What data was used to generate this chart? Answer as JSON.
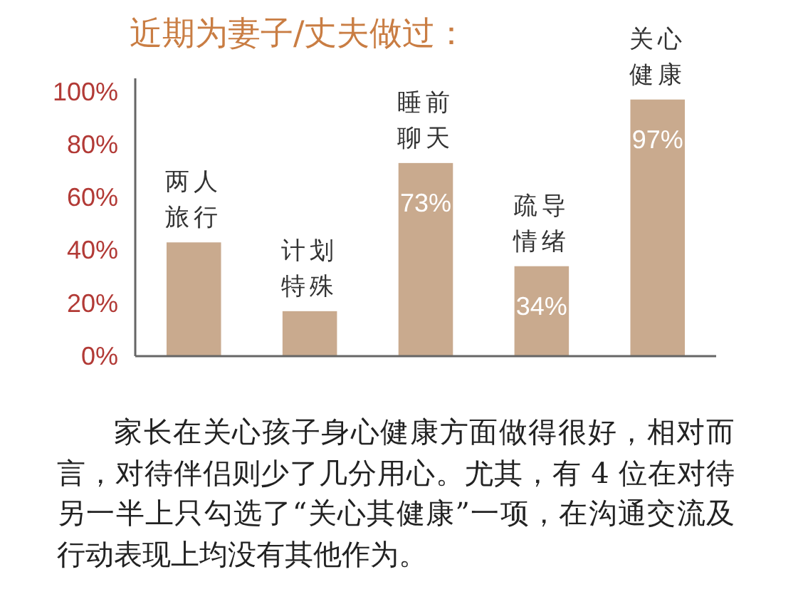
{
  "chart_data": {
    "type": "bar",
    "title": "近期为妻子/丈夫做过：",
    "categories": [
      "两人旅行",
      "计划特殊",
      "睡前聊天",
      "疏导情绪",
      "关心健康"
    ],
    "values": [
      43,
      17,
      73,
      34,
      97
    ],
    "color": "#c9aa8e",
    "value_labels": [
      null,
      null,
      "73%",
      "34%",
      "97%"
    ],
    "ylim": [
      0,
      105
    ],
    "yticks": [
      {
        "value": 0,
        "label": "0%"
      },
      {
        "value": 20,
        "label": "20%"
      },
      {
        "value": 40,
        "label": "40%"
      },
      {
        "value": 60,
        "label": "60%"
      },
      {
        "value": 80,
        "label": "80%"
      },
      {
        "value": 100,
        "label": "100%"
      }
    ],
    "annotations": [
      "家长在关心孩子身心健康方面做得很好，相对而言，对待伴侣则少了几分用心。尤其，有 4 位在对待另一半上只勾选了“关心其健康”一项，在沟通交流及行动表现上均没有其他作为。"
    ]
  }
}
